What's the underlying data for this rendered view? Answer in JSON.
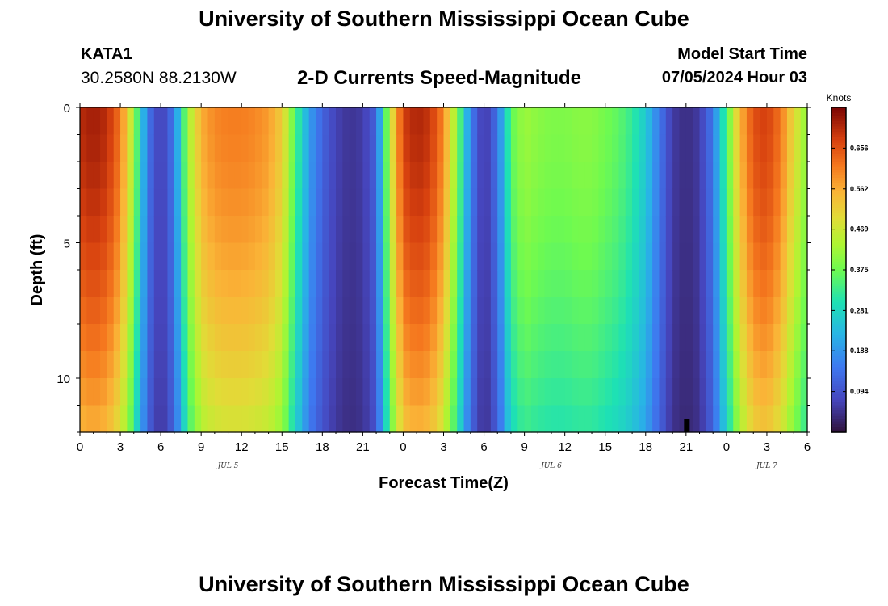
{
  "header": {
    "title": "University of Southern Mississippi Ocean Cube",
    "station_id": "KATA1",
    "coordinates": "30.2580N  88.2130W",
    "subtitle": "2-D Currents Speed-Magnitude",
    "model_start_label": "Model Start Time",
    "model_start_value": "07/05/2024 Hour 03"
  },
  "footer": {
    "title": "University of Southern Mississippi Ocean Cube"
  },
  "chart_data": {
    "type": "heatmap",
    "title": "2-D Currents Speed-Magnitude",
    "xlabel": "Forecast Time(Z)",
    "ylabel": "Depth (ft)",
    "x_unit": "hours since 07/05/2024 00Z",
    "xlim": [
      0,
      54
    ],
    "ylim": [
      0,
      12
    ],
    "x_ticks": [
      {
        "value": 0,
        "label": "0"
      },
      {
        "value": 3,
        "label": "3"
      },
      {
        "value": 6,
        "label": "6"
      },
      {
        "value": 9,
        "label": "9"
      },
      {
        "value": 12,
        "label": "12"
      },
      {
        "value": 15,
        "label": "15"
      },
      {
        "value": 18,
        "label": "18"
      },
      {
        "value": 21,
        "label": "21"
      },
      {
        "value": 24,
        "label": "0"
      },
      {
        "value": 27,
        "label": "3"
      },
      {
        "value": 30,
        "label": "6"
      },
      {
        "value": 33,
        "label": "9"
      },
      {
        "value": 36,
        "label": "12"
      },
      {
        "value": 39,
        "label": "15"
      },
      {
        "value": 42,
        "label": "18"
      },
      {
        "value": 45,
        "label": "21"
      },
      {
        "value": 48,
        "label": "0"
      },
      {
        "value": 51,
        "label": "3"
      },
      {
        "value": 54,
        "label": "6"
      }
    ],
    "day_labels": [
      {
        "value": 11,
        "label": "JUL 5"
      },
      {
        "value": 35,
        "label": "JUL 6"
      },
      {
        "value": 51,
        "label": "JUL 7"
      }
    ],
    "y_ticks": [
      {
        "value": 0,
        "label": "0"
      },
      {
        "value": 5,
        "label": "5"
      },
      {
        "value": 10,
        "label": "10"
      }
    ],
    "colorbar": {
      "unit": "Knots",
      "min": 0.0,
      "max": 0.75,
      "ticks": [
        0.094,
        0.188,
        0.281,
        0.375,
        0.469,
        0.562,
        0.656
      ],
      "tick_labels": [
        "0.094",
        "0.188",
        "0.281",
        "0.375",
        "0.469",
        "0.562",
        "0.656"
      ]
    },
    "time_profile_knots": [
      [
        0,
        0.7
      ],
      [
        1,
        0.72
      ],
      [
        2,
        0.7
      ],
      [
        3,
        0.62
      ],
      [
        4,
        0.42
      ],
      [
        5,
        0.15
      ],
      [
        6,
        0.06
      ],
      [
        7,
        0.15
      ],
      [
        8,
        0.42
      ],
      [
        9,
        0.56
      ],
      [
        10,
        0.6
      ],
      [
        11,
        0.61
      ],
      [
        12,
        0.61
      ],
      [
        13,
        0.6
      ],
      [
        14,
        0.58
      ],
      [
        15,
        0.52
      ],
      [
        16,
        0.35
      ],
      [
        17,
        0.2
      ],
      [
        18,
        0.12
      ],
      [
        19,
        0.07
      ],
      [
        20,
        0.05
      ],
      [
        21,
        0.06
      ],
      [
        22,
        0.12
      ],
      [
        23,
        0.45
      ],
      [
        24,
        0.68
      ],
      [
        25,
        0.71
      ],
      [
        26,
        0.69
      ],
      [
        27,
        0.6
      ],
      [
        28,
        0.4
      ],
      [
        29,
        0.16
      ],
      [
        30,
        0.05
      ],
      [
        31,
        0.14
      ],
      [
        32,
        0.36
      ],
      [
        33,
        0.42
      ],
      [
        34,
        0.4
      ],
      [
        35,
        0.39
      ],
      [
        36,
        0.39
      ],
      [
        37,
        0.4
      ],
      [
        38,
        0.4
      ],
      [
        39,
        0.38
      ],
      [
        40,
        0.36
      ],
      [
        41,
        0.32
      ],
      [
        42,
        0.26
      ],
      [
        43,
        0.15
      ],
      [
        44,
        0.06
      ],
      [
        45,
        0.04
      ],
      [
        46,
        0.06
      ],
      [
        47,
        0.15
      ],
      [
        48,
        0.35
      ],
      [
        49,
        0.55
      ],
      [
        50,
        0.66
      ],
      [
        51,
        0.68
      ],
      [
        52,
        0.62
      ],
      [
        53,
        0.5
      ],
      [
        54,
        0.4
      ]
    ],
    "depth_attenuation_bottom": 0.22
  }
}
